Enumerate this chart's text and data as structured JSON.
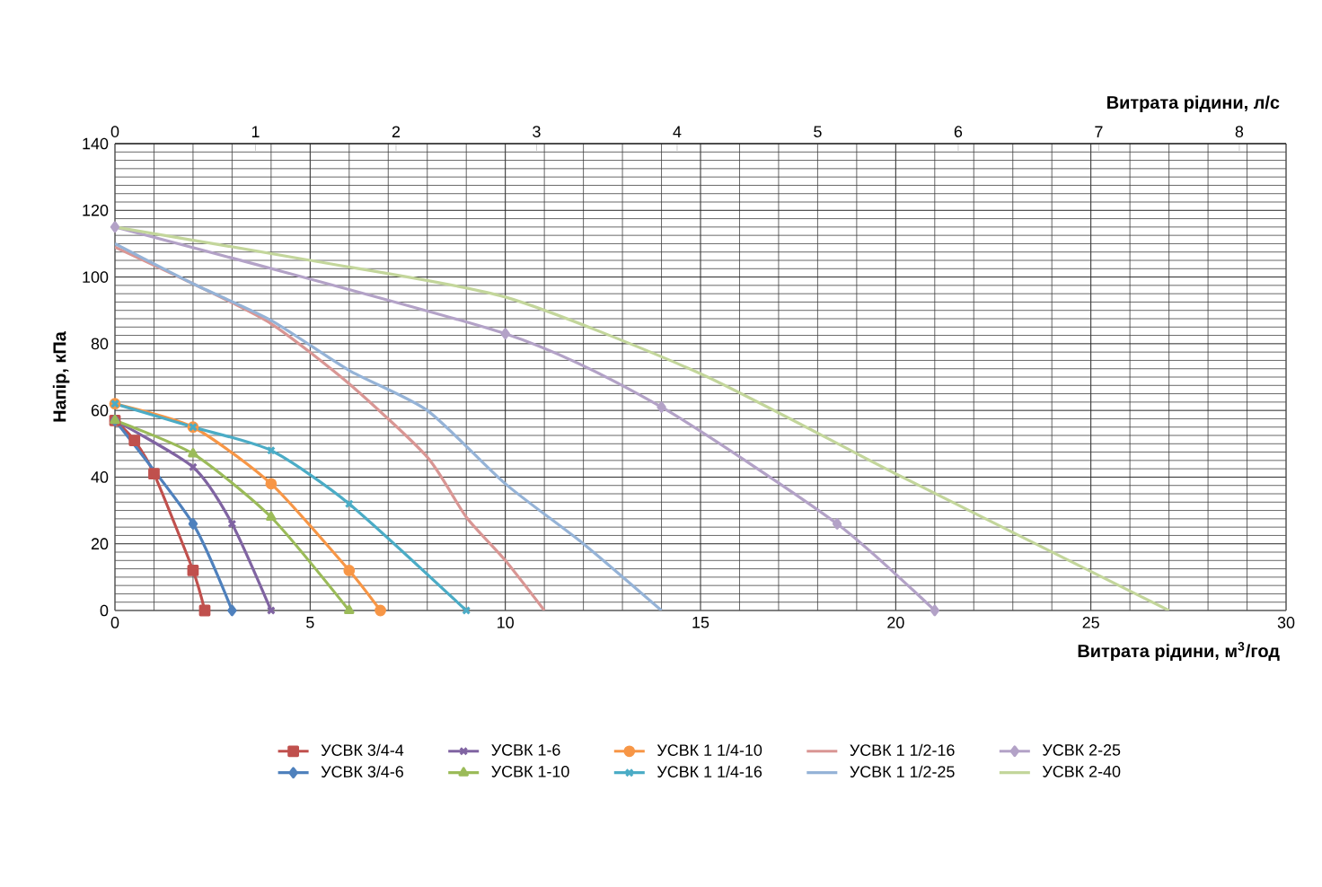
{
  "chart_data": {
    "type": "line",
    "xlabel": "Витрата рідини, м$^{3}$/год",
    "ylabel": "Напір, кПа",
    "x2label": "Витрата рідини, л/с",
    "xlim": [
      0,
      30
    ],
    "xticks": [
      0,
      5,
      10,
      15,
      20,
      25,
      30
    ],
    "ylim": [
      0,
      140
    ],
    "yticks": [
      0,
      20,
      40,
      60,
      80,
      100,
      120,
      140
    ],
    "x2lim": [
      0,
      8.333
    ],
    "x2ticks": [
      0,
      1,
      2,
      3,
      4,
      5,
      6,
      7,
      8
    ],
    "grid": true,
    "legend": "bottom",
    "series": [
      {
        "name": "УСВК 3/4-4",
        "color": "#c0504d",
        "marker": "square",
        "x": [
          0,
          0.5,
          1,
          2,
          2.3
        ],
        "values": [
          57,
          51,
          41,
          12,
          0
        ]
      },
      {
        "name": "УСВК 3/4-6",
        "color": "#4f81bd",
        "marker": "diamond",
        "x": [
          0,
          2,
          3
        ],
        "values": [
          57,
          26,
          0
        ]
      },
      {
        "name": "УСВК 1-6",
        "color": "#8064a2",
        "marker": "cross",
        "x": [
          0,
          2,
          3,
          4
        ],
        "values": [
          57,
          43,
          26,
          0
        ]
      },
      {
        "name": "УСВК 1-10",
        "color": "#9bbb59",
        "marker": "triangle",
        "x": [
          0,
          2,
          4,
          6
        ],
        "values": [
          57,
          47,
          28,
          0
        ]
      },
      {
        "name": "УСВК 1 1/4-10",
        "color": "#f79646",
        "marker": "circle",
        "x": [
          0,
          2,
          4,
          6,
          6.8
        ],
        "values": [
          62,
          55,
          38,
          12,
          0
        ]
      },
      {
        "name": "УСВК 1 1/4-16",
        "color": "#4bacc6",
        "marker": "cross",
        "x": [
          0,
          2,
          4,
          6,
          9
        ],
        "values": [
          62,
          55,
          48,
          32,
          0
        ]
      },
      {
        "name": "УСВК 1 1/2-16",
        "color": "#d99694",
        "marker": "none",
        "x": [
          0,
          2,
          4,
          6,
          8,
          9,
          10,
          11
        ],
        "values": [
          109,
          98,
          86,
          68,
          46,
          28,
          15,
          0
        ]
      },
      {
        "name": "УСВК 1 1/2-25",
        "color": "#95b3d7",
        "marker": "none",
        "x": [
          0,
          2,
          4,
          6,
          8,
          10,
          12,
          14
        ],
        "values": [
          110,
          98,
          87,
          72,
          60,
          38,
          20,
          0
        ]
      },
      {
        "name": "УСВК 2-25",
        "color": "#b3a2c7",
        "marker": "diamond",
        "x": [
          0,
          10,
          14,
          18.5,
          21
        ],
        "values": [
          115,
          83,
          61,
          26,
          0
        ]
      },
      {
        "name": "УСВК 2-40",
        "color": "#c3d69b",
        "marker": "none",
        "x": [
          0,
          5,
          10,
          15,
          20,
          27
        ],
        "values": [
          115,
          105,
          94,
          71,
          41,
          0
        ]
      }
    ]
  }
}
